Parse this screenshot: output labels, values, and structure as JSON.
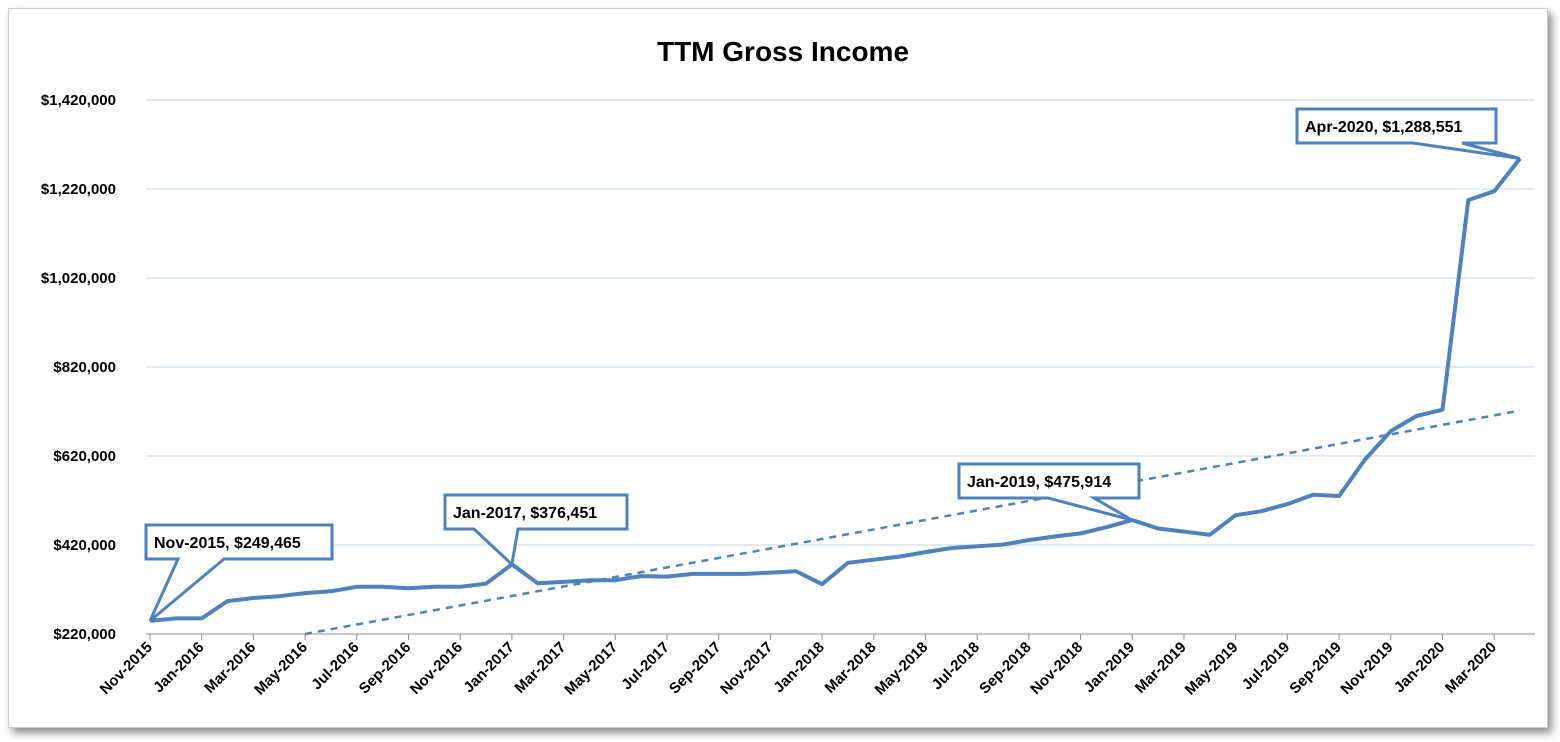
{
  "chart_data": {
    "type": "line",
    "title": "TTM Gross Income",
    "xlabel": "",
    "ylabel": "",
    "ylim": [
      220000,
      1420000
    ],
    "y_ticks": [
      220000,
      420000,
      620000,
      820000,
      1020000,
      1220000,
      1420000
    ],
    "y_tick_labels": [
      "$220,000",
      "$420,000",
      "$620,000",
      "$820,000",
      "$1,020,000",
      "$1,220,000",
      "$1,420,000"
    ],
    "grid": true,
    "x": [
      "Nov-2015",
      "Dec-2015",
      "Jan-2016",
      "Feb-2016",
      "Mar-2016",
      "Apr-2016",
      "May-2016",
      "Jun-2016",
      "Jul-2016",
      "Aug-2016",
      "Sep-2016",
      "Oct-2016",
      "Nov-2016",
      "Dec-2016",
      "Jan-2017",
      "Feb-2017",
      "Mar-2017",
      "Apr-2017",
      "May-2017",
      "Jun-2017",
      "Jul-2017",
      "Aug-2017",
      "Sep-2017",
      "Oct-2017",
      "Nov-2017",
      "Dec-2017",
      "Jan-2018",
      "Feb-2018",
      "Mar-2018",
      "Apr-2018",
      "May-2018",
      "Jun-2018",
      "Jul-2018",
      "Aug-2018",
      "Sep-2018",
      "Oct-2018",
      "Nov-2018",
      "Dec-2018",
      "Jan-2019",
      "Feb-2019",
      "Mar-2019",
      "Apr-2019",
      "May-2019",
      "Jun-2019",
      "Jul-2019",
      "Aug-2019",
      "Sep-2019",
      "Oct-2019",
      "Nov-2019",
      "Dec-2019",
      "Jan-2020",
      "Feb-2020",
      "Mar-2020",
      "Apr-2020"
    ],
    "x_tick_labels": [
      "Nov-2015",
      "Jan-2016",
      "Mar-2016",
      "May-2016",
      "Jul-2016",
      "Sep-2016",
      "Nov-2016",
      "Jan-2017",
      "Mar-2017",
      "May-2017",
      "Jul-2017",
      "Sep-2017",
      "Nov-2017",
      "Jan-2018",
      "Mar-2018",
      "May-2018",
      "Jul-2018",
      "Sep-2018",
      "Nov-2018",
      "Jan-2019",
      "Mar-2019",
      "May-2019",
      "Jul-2019",
      "Sep-2019",
      "Nov-2019",
      "Jan-2020",
      "Mar-2020"
    ],
    "series": [
      {
        "values": [
          249465,
          255000,
          255000,
          294000,
          301000,
          305000,
          312000,
          316000,
          326000,
          326000,
          323000,
          326000,
          326000,
          333000,
          376451,
          334000,
          337000,
          341000,
          341000,
          350000,
          349000,
          355000,
          355000,
          355000,
          358000,
          361000,
          332000,
          380000,
          387000,
          394000,
          404000,
          413000,
          417000,
          421000,
          431000,
          439000,
          446000,
          460000,
          475914,
          457000,
          450000,
          443000,
          487000,
          496000,
          512000,
          533000,
          530000,
          612000,
          676000,
          710000,
          724000,
          1195000,
          1215000,
          1288551
        ],
        "color": "#4f81bd"
      },
      {
        "type": "linear-trendline",
        "style": "dashed",
        "color": "#4f81bd",
        "start": {
          "x": "May-2016",
          "value": 220000
        },
        "end": {
          "x": "Apr-2020",
          "value": 722000
        }
      }
    ],
    "annotations": [
      {
        "x": "Nov-2015",
        "value": 249465,
        "text": "Nov-2015, $249,465"
      },
      {
        "x": "Jan-2017",
        "value": 376451,
        "text": "Jan-2017, $376,451"
      },
      {
        "x": "Jan-2019",
        "value": 475914,
        "text": "Jan-2019, $475,914"
      },
      {
        "x": "Apr-2020",
        "value": 1288551,
        "text": "Apr-2020, $1,288,551"
      }
    ],
    "legend": "none"
  }
}
